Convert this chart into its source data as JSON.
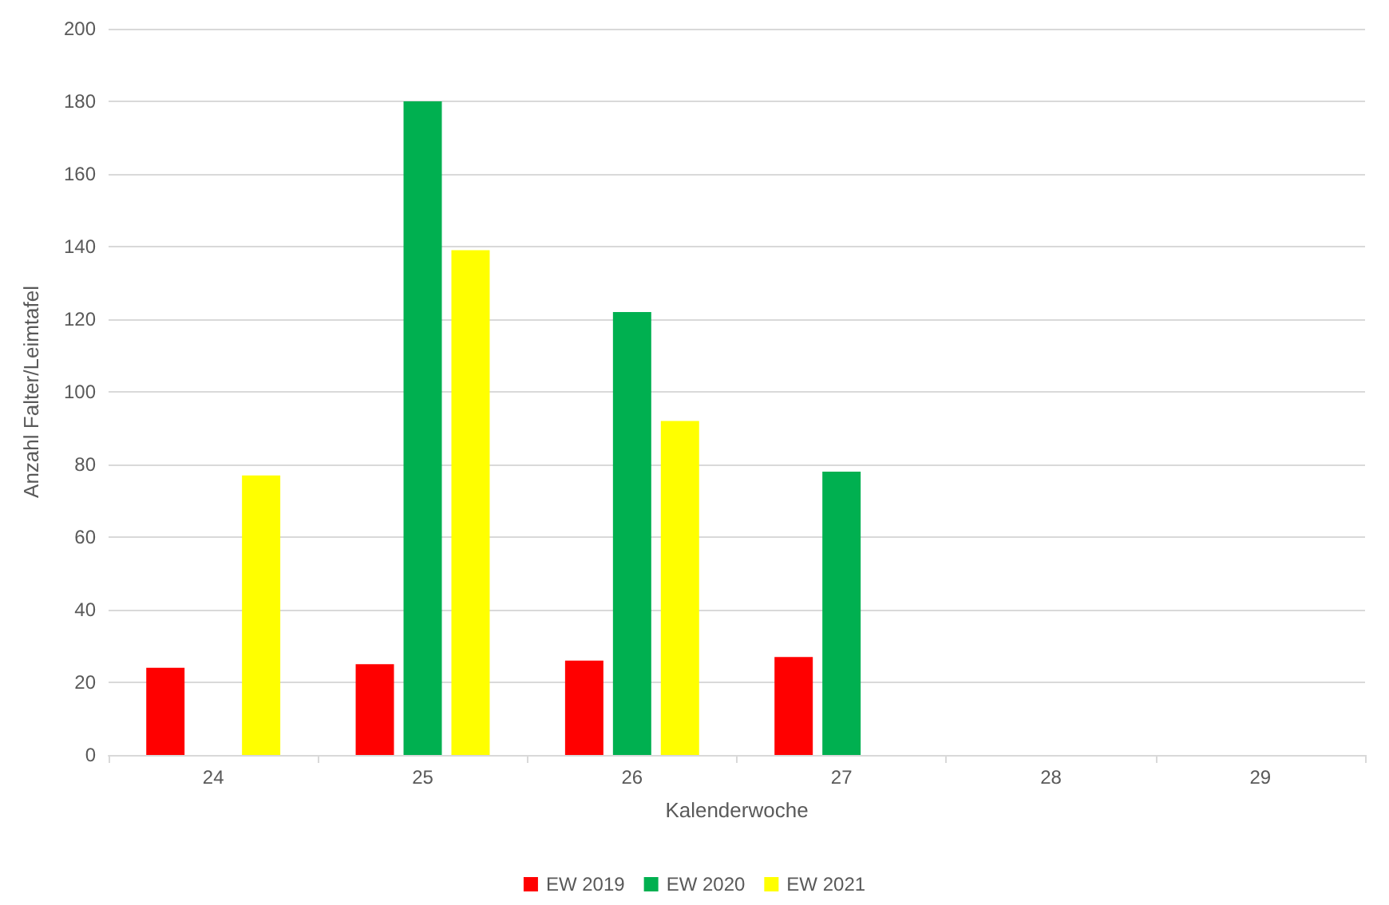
{
  "chart_data": {
    "type": "bar",
    "xlabel": "Kalenderwoche",
    "ylabel": "Anzahl Falter/Leimtafel",
    "categories": [
      "24",
      "25",
      "26",
      "27",
      "28",
      "29"
    ],
    "series": [
      {
        "name": "EW 2019",
        "color": "#ff0000",
        "values": [
          24,
          25,
          26,
          27,
          null,
          null
        ]
      },
      {
        "name": "EW 2020",
        "color": "#00b050",
        "values": [
          null,
          180,
          122,
          78,
          null,
          null
        ]
      },
      {
        "name": "EW 2021",
        "color": "#ffff00",
        "values": [
          77,
          139,
          92,
          null,
          null,
          null
        ]
      }
    ],
    "ylim": [
      0,
      200
    ],
    "yticks": [
      0,
      20,
      40,
      60,
      80,
      100,
      120,
      140,
      160,
      180,
      200
    ],
    "grid": "y",
    "legend": "bottom"
  }
}
